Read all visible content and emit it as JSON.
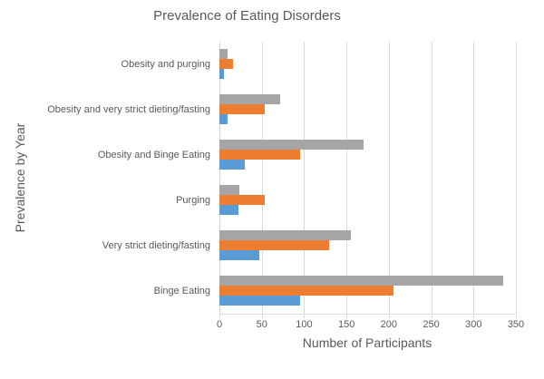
{
  "chart_data": {
    "type": "bar",
    "orientation": "horizontal",
    "title": "Prevalence of Eating Disorders",
    "xlabel": "Number of Participants",
    "ylabel": "Prevalence by Year",
    "xlim": [
      0,
      350
    ],
    "xticks": [
      0,
      50,
      100,
      150,
      200,
      250,
      300,
      350
    ],
    "grid": true,
    "legend": "none",
    "categories": [
      "Obesity and purging",
      "Obesity and very strict dieting/fasting",
      "Obesity and Binge Eating",
      "Purging",
      "Very strict dieting/fasting",
      "Binge Eating"
    ],
    "series": [
      {
        "name": "gray-series",
        "color": "#A5A5A5",
        "values": [
          10,
          72,
          170,
          24,
          155,
          335
        ]
      },
      {
        "name": "orange-series",
        "color": "#ED7D31",
        "values": [
          16,
          54,
          95,
          54,
          130,
          205
        ]
      },
      {
        "name": "blue-series",
        "color": "#5B9BD5",
        "values": [
          5,
          10,
          30,
          22,
          47,
          95
        ]
      }
    ]
  },
  "colors": {
    "gridline": "#D9D9D9",
    "axis_text": "#595959",
    "title_text": "#595959",
    "background": "#FFFFFF"
  }
}
